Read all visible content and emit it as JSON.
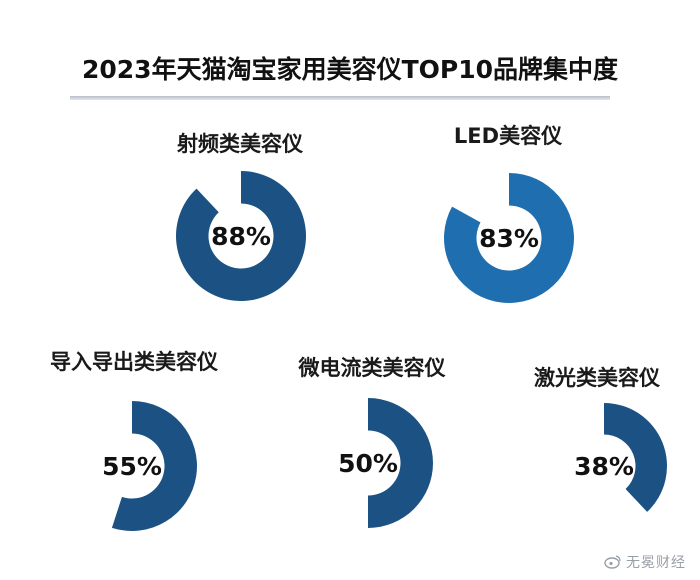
{
  "title": "2023年天猫淘宝家用美容仪TOP10品牌集中度",
  "watermark": "无冕财经",
  "chart_data": {
    "type": "pie",
    "title": "2023年天猫淘宝家用美容仪TOP10品牌集中度",
    "series": [
      {
        "label": "射频类美容仪",
        "value": 88,
        "display": "88%",
        "color": "#1c5283"
      },
      {
        "label": "LED美容仪",
        "value": 83,
        "display": "83%",
        "color": "#1f6fb0"
      },
      {
        "label": "导入导出类美容仪",
        "value": 55,
        "display": "55%",
        "color": "#1c5283"
      },
      {
        "label": "微电流类美容仪",
        "value": 50,
        "display": "50%",
        "color": "#1c5283"
      },
      {
        "label": "激光类美容仪",
        "value": 38,
        "display": "38%",
        "color": "#1c5283"
      }
    ]
  }
}
